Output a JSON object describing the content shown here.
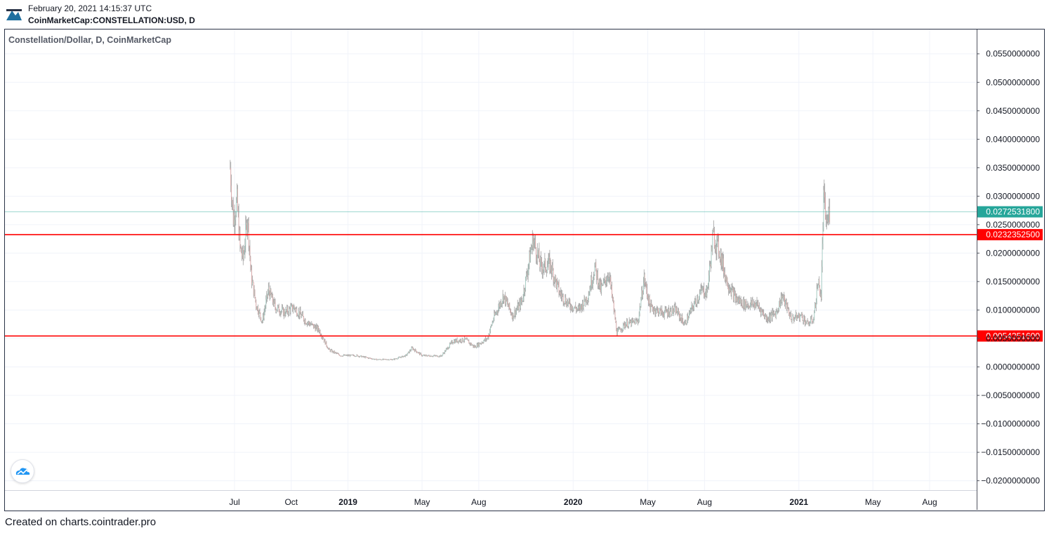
{
  "header": {
    "timestamp": "February 20, 2021 14:15:37 UTC",
    "symbol": "CoinMarketCap:CONSTELLATION:USD, D"
  },
  "footer": {
    "credit": "Created on charts.cointrader.pro"
  },
  "colors": {
    "up": "#9fd3c7",
    "down": "#e6a4a4",
    "wick": "#a0a0a0",
    "level_line": "#ff0000",
    "last_price_line": "#26a69a",
    "frame": "#2a3346",
    "grid": "#f0f3fa"
  },
  "icons": {
    "header_logo": "cointrader-logo-icon",
    "badge": "tradingview-cloud-icon"
  },
  "chart_data": {
    "type": "line",
    "title": "Constellation/Dollar, D, CoinMarketCap",
    "ylim": [
      -0.0225,
      0.0575
    ],
    "yticks": [
      0.055,
      0.05,
      0.045,
      0.04,
      0.035,
      0.03,
      0.025,
      0.02,
      0.015,
      0.01,
      0.005,
      0.0,
      -0.005,
      -0.01,
      -0.015,
      -0.02
    ],
    "ytick_labels": [
      "0.0550000000",
      "0.0500000000",
      "0.0450000000",
      "0.0400000000",
      "0.0350000000",
      "0.0300000000",
      "0.0250000000",
      "0.0200000000",
      "0.0150000000",
      "0.0100000000",
      "0.0050000000",
      "0.0000000000",
      "−0.0050000000",
      "−0.0100000000",
      "−0.0150000000",
      "−0.0200000000"
    ],
    "xlim": [
      "2018-05-15",
      "2021-10-21"
    ],
    "xticks": [
      {
        "label": "Jul",
        "date": "2018-07-01",
        "bold": false
      },
      {
        "label": "Oct",
        "date": "2018-10-01",
        "bold": false
      },
      {
        "label": "2019",
        "date": "2019-01-01",
        "bold": true
      },
      {
        "label": "May",
        "date": "2019-05-01",
        "bold": false
      },
      {
        "label": "Aug",
        "date": "2019-08-01",
        "bold": false
      },
      {
        "label": "2020",
        "date": "2020-01-01",
        "bold": true
      },
      {
        "label": "May",
        "date": "2020-05-01",
        "bold": false
      },
      {
        "label": "Aug",
        "date": "2020-08-01",
        "bold": false
      },
      {
        "label": "2021",
        "date": "2021-01-01",
        "bold": true
      },
      {
        "label": "May",
        "date": "2021-05-01",
        "bold": false
      },
      {
        "label": "Aug",
        "date": "2021-08-01",
        "bold": false
      }
    ],
    "grid": true,
    "series": [
      {
        "style": "candles",
        "approx_close": [
          {
            "date": "2018-06-24",
            "value": 0.035
          },
          {
            "date": "2018-06-29",
            "value": 0.026
          },
          {
            "date": "2018-07-05",
            "value": 0.029
          },
          {
            "date": "2018-07-10",
            "value": 0.021
          },
          {
            "date": "2018-07-15",
            "value": 0.019
          },
          {
            "date": "2018-07-22",
            "value": 0.0265
          },
          {
            "date": "2018-07-28",
            "value": 0.016
          },
          {
            "date": "2018-08-05",
            "value": 0.011
          },
          {
            "date": "2018-08-15",
            "value": 0.008
          },
          {
            "date": "2018-08-25",
            "value": 0.0135
          },
          {
            "date": "2018-09-05",
            "value": 0.0105
          },
          {
            "date": "2018-09-20",
            "value": 0.0095
          },
          {
            "date": "2018-10-05",
            "value": 0.0105
          },
          {
            "date": "2018-10-25",
            "value": 0.008
          },
          {
            "date": "2018-11-15",
            "value": 0.0065
          },
          {
            "date": "2018-12-01",
            "value": 0.003
          },
          {
            "date": "2018-12-20",
            "value": 0.002
          },
          {
            "date": "2019-01-15",
            "value": 0.002
          },
          {
            "date": "2019-02-15",
            "value": 0.0013
          },
          {
            "date": "2019-03-15",
            "value": 0.0013
          },
          {
            "date": "2019-04-05",
            "value": 0.002
          },
          {
            "date": "2019-04-15",
            "value": 0.0033
          },
          {
            "date": "2019-05-01",
            "value": 0.002
          },
          {
            "date": "2019-06-01",
            "value": 0.0019
          },
          {
            "date": "2019-06-20",
            "value": 0.0045
          },
          {
            "date": "2019-07-10",
            "value": 0.0048
          },
          {
            "date": "2019-07-25",
            "value": 0.0035
          },
          {
            "date": "2019-08-15",
            "value": 0.005
          },
          {
            "date": "2019-08-25",
            "value": 0.0085
          },
          {
            "date": "2019-09-10",
            "value": 0.0125
          },
          {
            "date": "2019-09-25",
            "value": 0.009
          },
          {
            "date": "2019-10-10",
            "value": 0.0115
          },
          {
            "date": "2019-10-28",
            "value": 0.0225
          },
          {
            "date": "2019-11-10",
            "value": 0.0175
          },
          {
            "date": "2019-11-25",
            "value": 0.018
          },
          {
            "date": "2019-12-10",
            "value": 0.013
          },
          {
            "date": "2019-12-25",
            "value": 0.011
          },
          {
            "date": "2020-01-10",
            "value": 0.01
          },
          {
            "date": "2020-01-25",
            "value": 0.0125
          },
          {
            "date": "2020-02-05",
            "value": 0.0175
          },
          {
            "date": "2020-02-15",
            "value": 0.0135
          },
          {
            "date": "2020-02-28",
            "value": 0.0165
          },
          {
            "date": "2020-03-12",
            "value": 0.006
          },
          {
            "date": "2020-03-25",
            "value": 0.0075
          },
          {
            "date": "2020-04-15",
            "value": 0.008
          },
          {
            "date": "2020-04-25",
            "value": 0.0155
          },
          {
            "date": "2020-05-05",
            "value": 0.0105
          },
          {
            "date": "2020-05-25",
            "value": 0.0095
          },
          {
            "date": "2020-06-15",
            "value": 0.01
          },
          {
            "date": "2020-06-30",
            "value": 0.0075
          },
          {
            "date": "2020-07-15",
            "value": 0.011
          },
          {
            "date": "2020-07-28",
            "value": 0.0135
          },
          {
            "date": "2020-08-05",
            "value": 0.013
          },
          {
            "date": "2020-08-15",
            "value": 0.023
          },
          {
            "date": "2020-08-25",
            "value": 0.0205
          },
          {
            "date": "2020-09-05",
            "value": 0.0155
          },
          {
            "date": "2020-09-20",
            "value": 0.012
          },
          {
            "date": "2020-10-05",
            "value": 0.011
          },
          {
            "date": "2020-10-25",
            "value": 0.011
          },
          {
            "date": "2020-11-10",
            "value": 0.0085
          },
          {
            "date": "2020-11-25",
            "value": 0.0095
          },
          {
            "date": "2020-12-05",
            "value": 0.0125
          },
          {
            "date": "2020-12-20",
            "value": 0.0085
          },
          {
            "date": "2021-01-05",
            "value": 0.009
          },
          {
            "date": "2021-01-15",
            "value": 0.0075
          },
          {
            "date": "2021-01-25",
            "value": 0.0085
          },
          {
            "date": "2021-02-01",
            "value": 0.015
          },
          {
            "date": "2021-02-06",
            "value": 0.0125
          },
          {
            "date": "2021-02-10",
            "value": 0.0295
          },
          {
            "date": "2021-02-15",
            "value": 0.025
          },
          {
            "date": "2021-02-20",
            "value": 0.02725318
          }
        ]
      }
    ],
    "horizontal_lines": [
      {
        "value": 0.02323525,
        "label": "0.0232352500",
        "color": "#ff0000"
      },
      {
        "value": 0.00543516,
        "label": "0.0054351600",
        "color": "#ff0000"
      }
    ],
    "last_price": {
      "value": 0.02725318,
      "label": "0.0272531800",
      "color": "#26a69a"
    }
  }
}
